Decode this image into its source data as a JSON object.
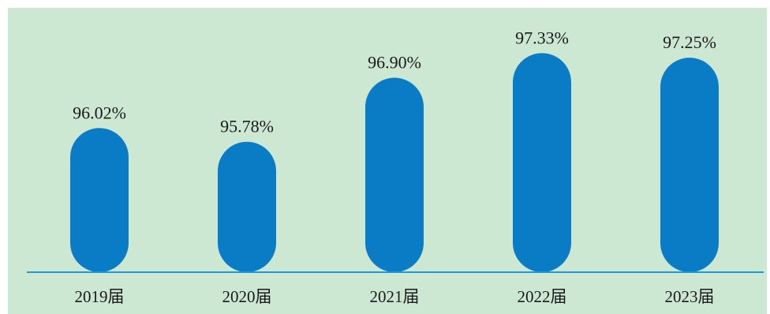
{
  "colors": {
    "background": "#cde8d2",
    "bar": "#0a7cc6",
    "baseline": "#1e9bd7",
    "text": "#1a1a1a"
  },
  "chart_data": {
    "type": "bar",
    "categories": [
      "2019届",
      "2020届",
      "2021届",
      "2022届",
      "2023届"
    ],
    "values": [
      96.02,
      95.78,
      96.9,
      97.33,
      97.25
    ],
    "value_labels": [
      "96.02%",
      "95.78%",
      "96.90%",
      "97.33%",
      "97.25%"
    ],
    "unit": "%",
    "grid": false,
    "legend": "none",
    "ylim": [
      93.5,
      97.5
    ]
  }
}
